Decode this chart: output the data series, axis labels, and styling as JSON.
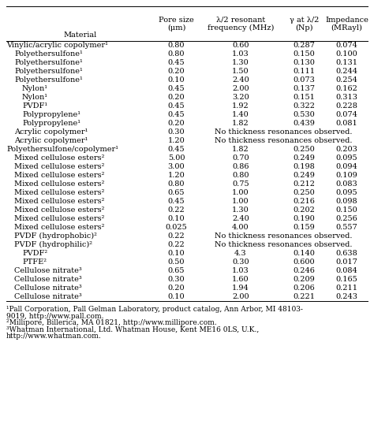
{
  "headers_line1": [
    "",
    "Pore size",
    "λ/2 resonant",
    "γ at λ/2",
    "Impedance"
  ],
  "headers_line2": [
    "Material",
    "(μm)",
    "frequency (MHz)",
    "(Np)",
    "(MRayl)"
  ],
  "rows": [
    [
      "Vinylic/acrylic copolymer¹",
      "0.80",
      "0.60",
      "0.287",
      "0.074"
    ],
    [
      "Polyethersulfone¹",
      "0.80",
      "1.03",
      "0.150",
      "0.100"
    ],
    [
      "Polyethersulfone¹",
      "0.45",
      "1.30",
      "0.130",
      "0.131"
    ],
    [
      "Polyethersulfone¹",
      "0.20",
      "1.50",
      "0.111",
      "0.244"
    ],
    [
      "Polyethersulfone¹",
      "0.10",
      "2.40",
      "0.073",
      "0.254"
    ],
    [
      "Nylon¹",
      "0.45",
      "2.00",
      "0.137",
      "0.162"
    ],
    [
      "Nylon¹",
      "0.20",
      "3.20",
      "0.151",
      "0.313"
    ],
    [
      "PVDF¹",
      "0.45",
      "1.92",
      "0.322",
      "0.228"
    ],
    [
      "Polypropylene¹",
      "0.45",
      "1.40",
      "0.530",
      "0.074"
    ],
    [
      "Polypropylene¹",
      "0.20",
      "1.82",
      "0.439",
      "0.081"
    ],
    [
      "Acrylic copolymer¹",
      "0.30",
      "NO_THICKNESS",
      "",
      ""
    ],
    [
      "Acrylic copolymer¹",
      "1.20",
      "NO_THICKNESS",
      "",
      ""
    ],
    [
      "Polyethersulfone/copolymer¹",
      "0.45",
      "1.82",
      "0.250",
      "0.203"
    ],
    [
      "Mixed cellulose esters²",
      "5.00",
      "0.70",
      "0.249",
      "0.095"
    ],
    [
      "Mixed cellulose esters²",
      "3.00",
      "0.86",
      "0.198",
      "0.094"
    ],
    [
      "Mixed cellulose esters²",
      "1.20",
      "0.80",
      "0.249",
      "0.109"
    ],
    [
      "Mixed cellulose esters²",
      "0.80",
      "0.75",
      "0.212",
      "0.083"
    ],
    [
      "Mixed cellulose esters²",
      "0.65",
      "1.00",
      "0.250",
      "0.095"
    ],
    [
      "Mixed cellulose esters²",
      "0.45",
      "1.00",
      "0.216",
      "0.098"
    ],
    [
      "Mixed cellulose esters²",
      "0.22",
      "1.30",
      "0.202",
      "0.150"
    ],
    [
      "Mixed cellulose esters²",
      "0.10",
      "2.40",
      "0.190",
      "0.256"
    ],
    [
      "Mixed cellulose esters²",
      "0.025",
      "4.00",
      "0.159",
      "0.557"
    ],
    [
      "PVDF (hydrophobic)²",
      "0.22",
      "NO_THICKNESS",
      "",
      ""
    ],
    [
      "PVDF (hydrophilic)²",
      "0.22",
      "NO_THICKNESS",
      "",
      ""
    ],
    [
      "PVDF²",
      "0.10",
      "4.3",
      "0.140",
      "0.638"
    ],
    [
      "PTFE²",
      "0.50",
      "0.30",
      "0.600",
      "0.017"
    ],
    [
      "Cellulose nitrate³",
      "0.65",
      "1.03",
      "0.246",
      "0.084"
    ],
    [
      "Cellulose nitrate³",
      "0.30",
      "1.60",
      "0.209",
      "0.165"
    ],
    [
      "Cellulose nitrate³",
      "0.20",
      "1.94",
      "0.206",
      "0.211"
    ],
    [
      "Cellulose nitrate³",
      "0.10",
      "2.00",
      "0.221",
      "0.243"
    ]
  ],
  "no_thickness_text": "No thickness resonances observed.",
  "footnote1": "¹Pall Corporation, Pall Gelman Laboratory, product catalog, Ann Arbor, MI 48103-\n9019, http://www.pall.com.",
  "footnote2": "²Millipore, Billerica, MA 01821, http://www.millipore.com.",
  "footnote3": "³Whatman International, Ltd. Whatman House, Kent ME16 0LS, U.K.,\nhttp://www.whatman.com.",
  "indent_map": {
    "Vinylic/acrylic copolymer¹": 0,
    "Polyethersulfone¹": 1,
    "Nylon¹": 2,
    "PVDF¹": 2,
    "Polypropylene¹": 2,
    "Acrylic copolymer¹": 1,
    "Polyethersulfone/copolymer¹": 0,
    "Mixed cellulose esters²": 1,
    "PVDF (hydrophobic)²": 1,
    "PVDF (hydrophilic)²": 1,
    "PVDF²": 2,
    "PTFE²": 2,
    "Cellulose nitrate³": 1
  },
  "bg_color": "#ffffff",
  "text_color": "#000000",
  "fontsize": 7.0,
  "footnote_fontsize": 6.5
}
